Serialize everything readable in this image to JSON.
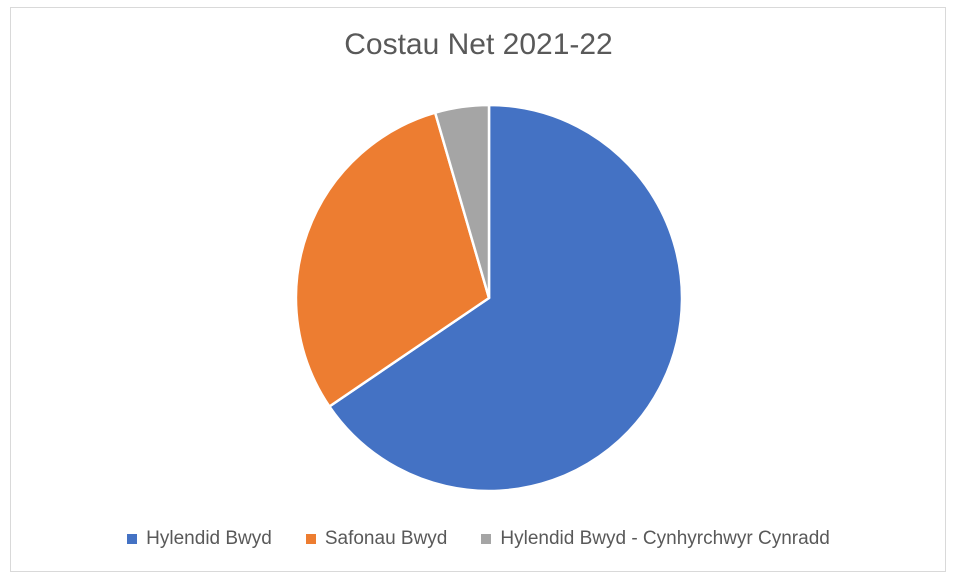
{
  "chart_data": {
    "type": "pie",
    "title": "Costau Net 2021-22",
    "series": [
      {
        "name": "Hylendid Bwyd",
        "value": 65.5,
        "color": "#4472C4"
      },
      {
        "name": "Safonau Bwyd",
        "value": 30.0,
        "color": "#ED7D31"
      },
      {
        "name": "Hylendid Bwyd - Cynhyrchwyr Cynradd",
        "value": 4.5,
        "color": "#A5A5A5"
      }
    ],
    "legend_position": "bottom",
    "start_angle": "12 o'clock, clockwise"
  }
}
